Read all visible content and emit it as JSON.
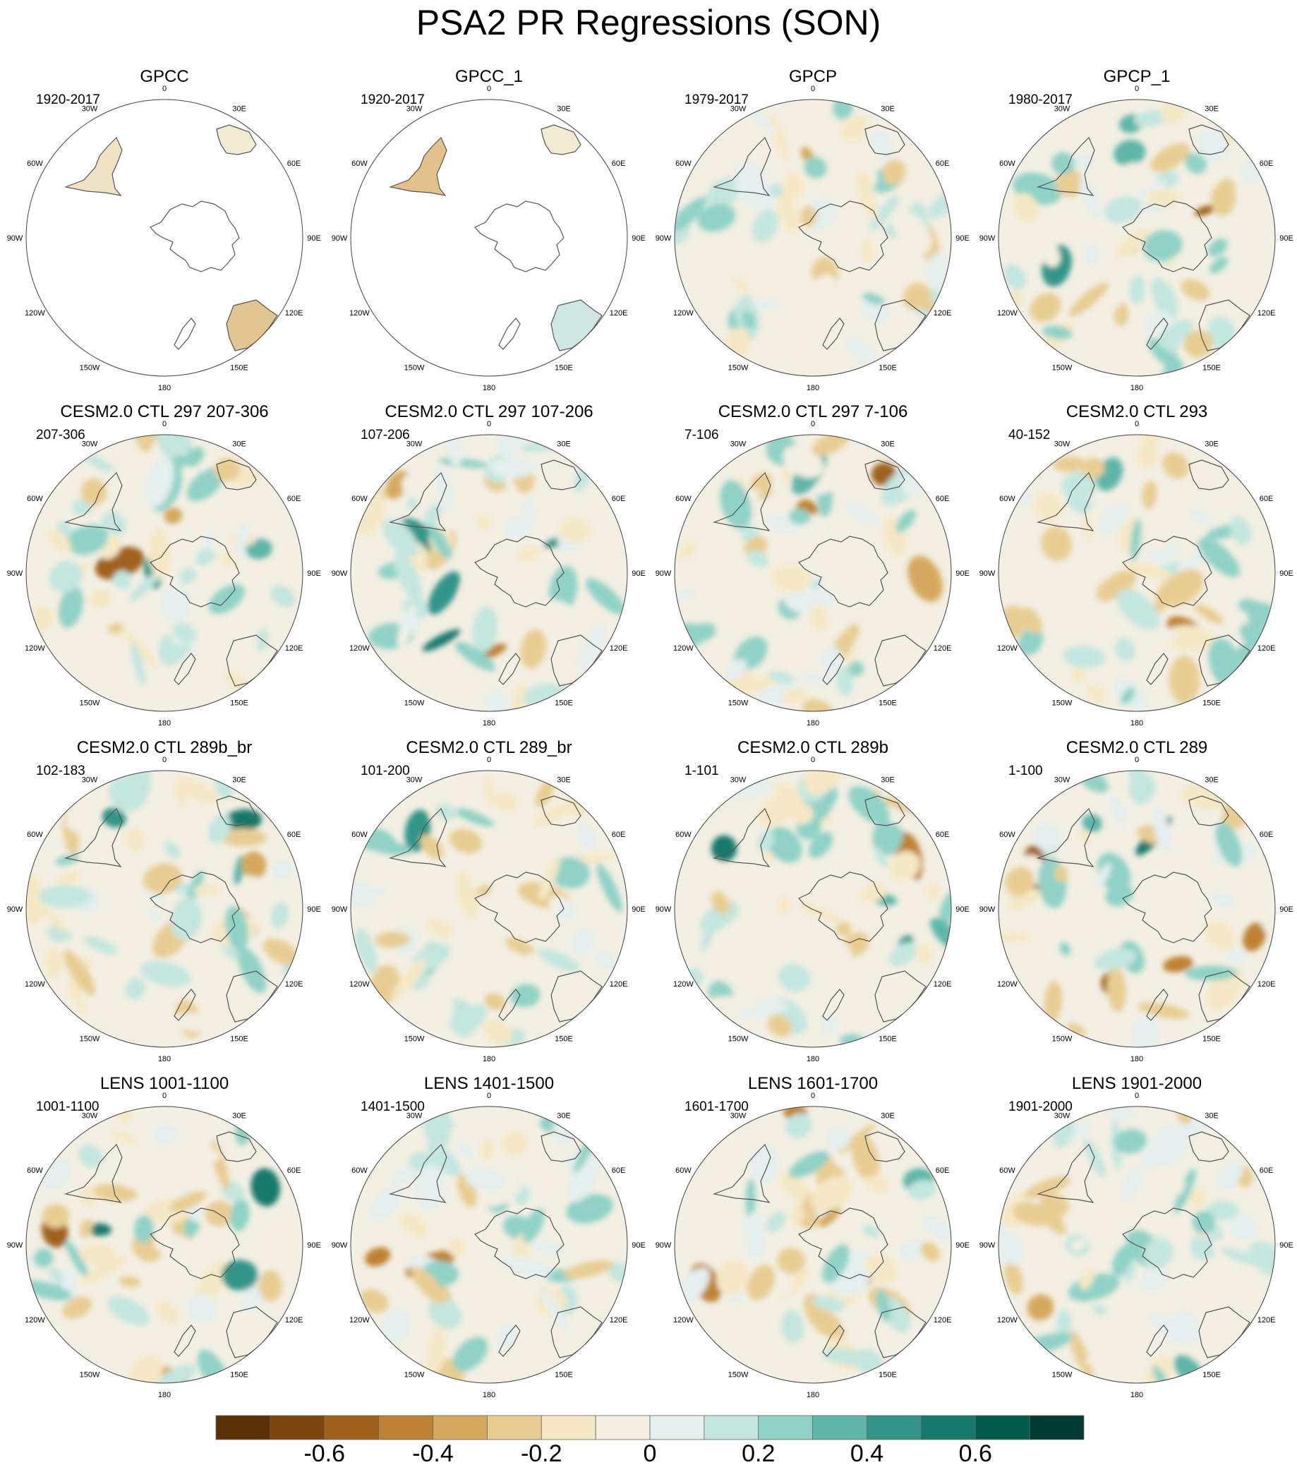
{
  "title": "PSA2 PR Regressions (SON)",
  "longitude_labels": [
    "0",
    "30E",
    "60E",
    "90E",
    "120E",
    "150E",
    "180",
    "150W",
    "120W",
    "90W",
    "60W",
    "30W"
  ],
  "panels": [
    {
      "title": "GPCC",
      "period": "1920-2017",
      "observational_coverage": "land-only"
    },
    {
      "title": "GPCC_1",
      "period": "1920-2017",
      "observational_coverage": "land-only"
    },
    {
      "title": "GPCP",
      "period": "1979-2017",
      "observational_coverage": "global"
    },
    {
      "title": "GPCP_1",
      "period": "1980-2017",
      "observational_coverage": "global"
    },
    {
      "title": "CESM2.0 CTL 297 207-306",
      "period": "207-306"
    },
    {
      "title": "CESM2.0 CTL 297 107-206",
      "period": "107-206"
    },
    {
      "title": "CESM2.0 CTL 297 7-106",
      "period": "7-106"
    },
    {
      "title": "CESM2.0 CTL 293",
      "period": "40-152"
    },
    {
      "title": "CESM2.0 CTL 289b_br",
      "period": "102-183"
    },
    {
      "title": "CESM2.0 CTL 289_br",
      "period": "101-200"
    },
    {
      "title": "CESM2.0 CTL 289b",
      "period": "1-101"
    },
    {
      "title": "CESM2.0 CTL 289",
      "period": "1-100"
    },
    {
      "title": "LENS 1001-1100",
      "period": "1001-1100"
    },
    {
      "title": "LENS 1401-1500",
      "period": "1401-1500"
    },
    {
      "title": "LENS 1601-1700",
      "period": "1601-1700"
    },
    {
      "title": "LENS 1901-2000",
      "period": "1901-2000"
    }
  ],
  "colorbar": {
    "colors": [
      "#5a3006",
      "#7d460c",
      "#a0621a",
      "#bf8232",
      "#d5a95d",
      "#e8cd93",
      "#f5e8c6",
      "#f3efe3",
      "#e4efee",
      "#c3e6df",
      "#90d2c6",
      "#5fb6a9",
      "#339588",
      "#14796b",
      "#035b4c",
      "#003b30"
    ],
    "tick_labels": [
      "-0.6",
      "-0.4",
      "-0.2",
      "0",
      "0.2",
      "0.4",
      "0.6"
    ]
  }
}
